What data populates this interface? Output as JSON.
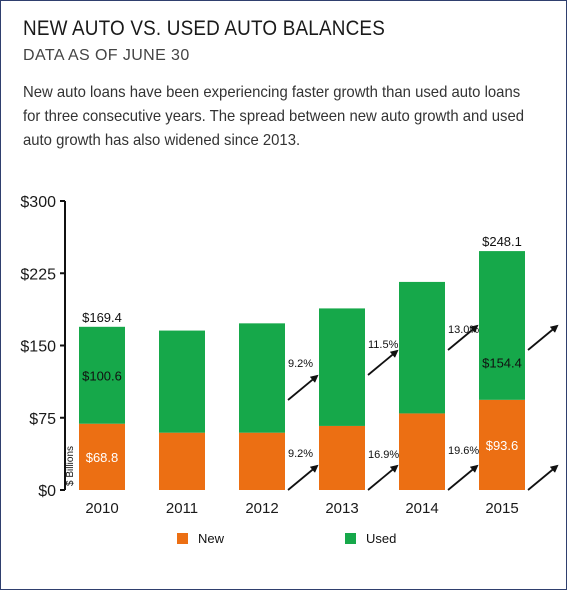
{
  "header": {
    "title": "NEW AUTO VS. USED AUTO BALANCES",
    "subtitle": "DATA AS OF JUNE 30",
    "description": "New auto loans have been experiencing faster growth than used auto loans for three consecutive years. The spread between new auto growth and used auto growth has also widened since 2013."
  },
  "chart_data": {
    "type": "bar",
    "stacked": true,
    "categories": [
      "2010",
      "2011",
      "2012",
      "2013",
      "2014",
      "2015"
    ],
    "series": [
      {
        "name": "New",
        "color": "#ec6f13",
        "values": [
          68.8,
          59.5,
          59.5,
          66.5,
          79.5,
          93.6
        ]
      },
      {
        "name": "Used",
        "color": "#16a84a",
        "values": [
          100.6,
          106.0,
          113.5,
          122.0,
          136.5,
          154.4
        ]
      }
    ],
    "totals": [
      169.4,
      165.5,
      173.0,
      188.5,
      216.0,
      248.1
    ],
    "ylim": [
      0,
      300
    ],
    "yticks": [
      0,
      75,
      150,
      225,
      300
    ],
    "ytick_labels": [
      "$0",
      "$75",
      "$150",
      "$225",
      "$300"
    ],
    "ylabel": "$ Billions",
    "grid": false,
    "legend_position": "bottom",
    "data_labels": {
      "total_2010": "$169.4",
      "used_2010": "$100.6",
      "new_2010": "$68.8",
      "total_2015": "$248.1",
      "used_2015": "$154.4",
      "new_2015": "$93.6"
    },
    "growth_annotations": {
      "used": [
        "9.2%",
        "11.5%",
        "13.0%"
      ],
      "new": [
        "9.2%",
        "16.9%",
        "19.6%"
      ]
    }
  }
}
